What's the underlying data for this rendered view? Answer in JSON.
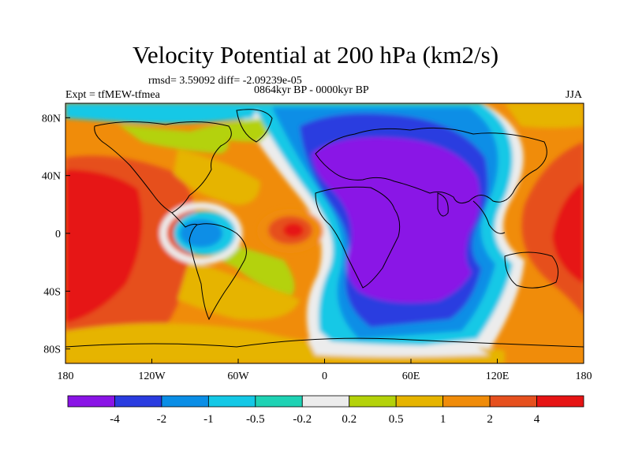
{
  "title": "Velocity Potential at 200 hPa (km2/s)",
  "stats_line": "rmsd= 3.59092 diff= -2.09239e-05",
  "left_label": "Expt = tfMEW-tfmea",
  "center_label": "0864kyr BP - 0000kyr BP",
  "right_label": "JJA",
  "map": {
    "lon_range": [
      -180,
      180
    ],
    "lat_range": [
      -90,
      90
    ],
    "lon_ticks": [
      "180",
      "120W",
      "60W",
      "0",
      "60E",
      "120E",
      "180"
    ],
    "lat_ticks": [
      "80N",
      "40N",
      "0",
      "40S",
      "80S"
    ],
    "continents_outline": true
  },
  "colorbar": {
    "colors": [
      "#8a14e6",
      "#2a3ce0",
      "#0a8ee6",
      "#14c8e6",
      "#1ed2b4",
      "#ececec",
      "#b4d20a",
      "#e6b400",
      "#f08c0a",
      "#e6501e",
      "#e61414"
    ],
    "labels": [
      "-4",
      "-2",
      "-1",
      "-0.5",
      "-0.2",
      "0.2",
      "0.5",
      "1",
      "2",
      "4"
    ]
  }
}
